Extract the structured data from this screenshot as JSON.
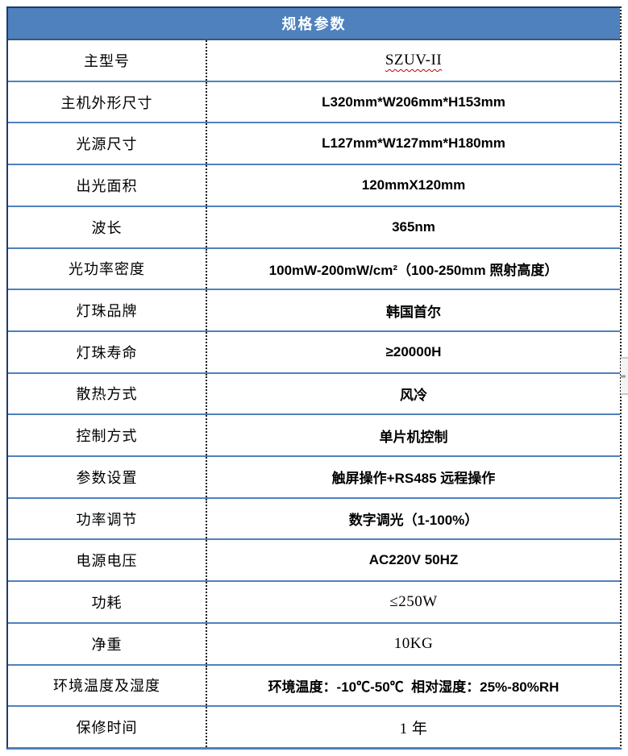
{
  "table": {
    "title": "规格参数",
    "rows": [
      {
        "label": "主型号",
        "value": "SZUV-II",
        "value_style": "serif",
        "spellcheck_underline": true
      },
      {
        "label": "主机外形尺寸",
        "value": "L320mm*W206mm*H153mm"
      },
      {
        "label": "光源尺寸",
        "value": "L127mm*W127mm*H180mm"
      },
      {
        "label": "出光面积",
        "value": "120mmX120mm"
      },
      {
        "label": "波长",
        "value": "365nm"
      },
      {
        "label": "光功率密度",
        "value": "100mW-200mW/cm²（100-250mm 照射高度）"
      },
      {
        "label": "灯珠品牌",
        "value": "韩国首尔"
      },
      {
        "label": "灯珠寿命",
        "value": "≥20000H"
      },
      {
        "label": "散热方式",
        "value": "风冷"
      },
      {
        "label": "控制方式",
        "value": "单片机控制"
      },
      {
        "label": "参数设置",
        "value": "触屏操作+RS485 远程操作"
      },
      {
        "label": "功率调节",
        "value": "数字调光（1-100%）"
      },
      {
        "label": "电源电压",
        "value": "AC220V 50HZ"
      },
      {
        "label": "功耗",
        "value": "≤250W",
        "value_style": "serif"
      },
      {
        "label": "净重",
        "value": "10KG",
        "value_style": "serif"
      },
      {
        "label": "环境温度及湿度",
        "value": "环境温度：-10℃-50℃  相对湿度：25%-80%RH"
      },
      {
        "label": "保修时间",
        "value": "1 年",
        "value_style": "serif"
      }
    ]
  },
  "colors": {
    "header_bg": "#4e81bd",
    "row_separator": "#4f81bd",
    "outer_border": "#1f3b66",
    "column_divider": "#1a1a1a",
    "header_text": "#ffffff",
    "spellcheck_underline": "#c00000"
  }
}
